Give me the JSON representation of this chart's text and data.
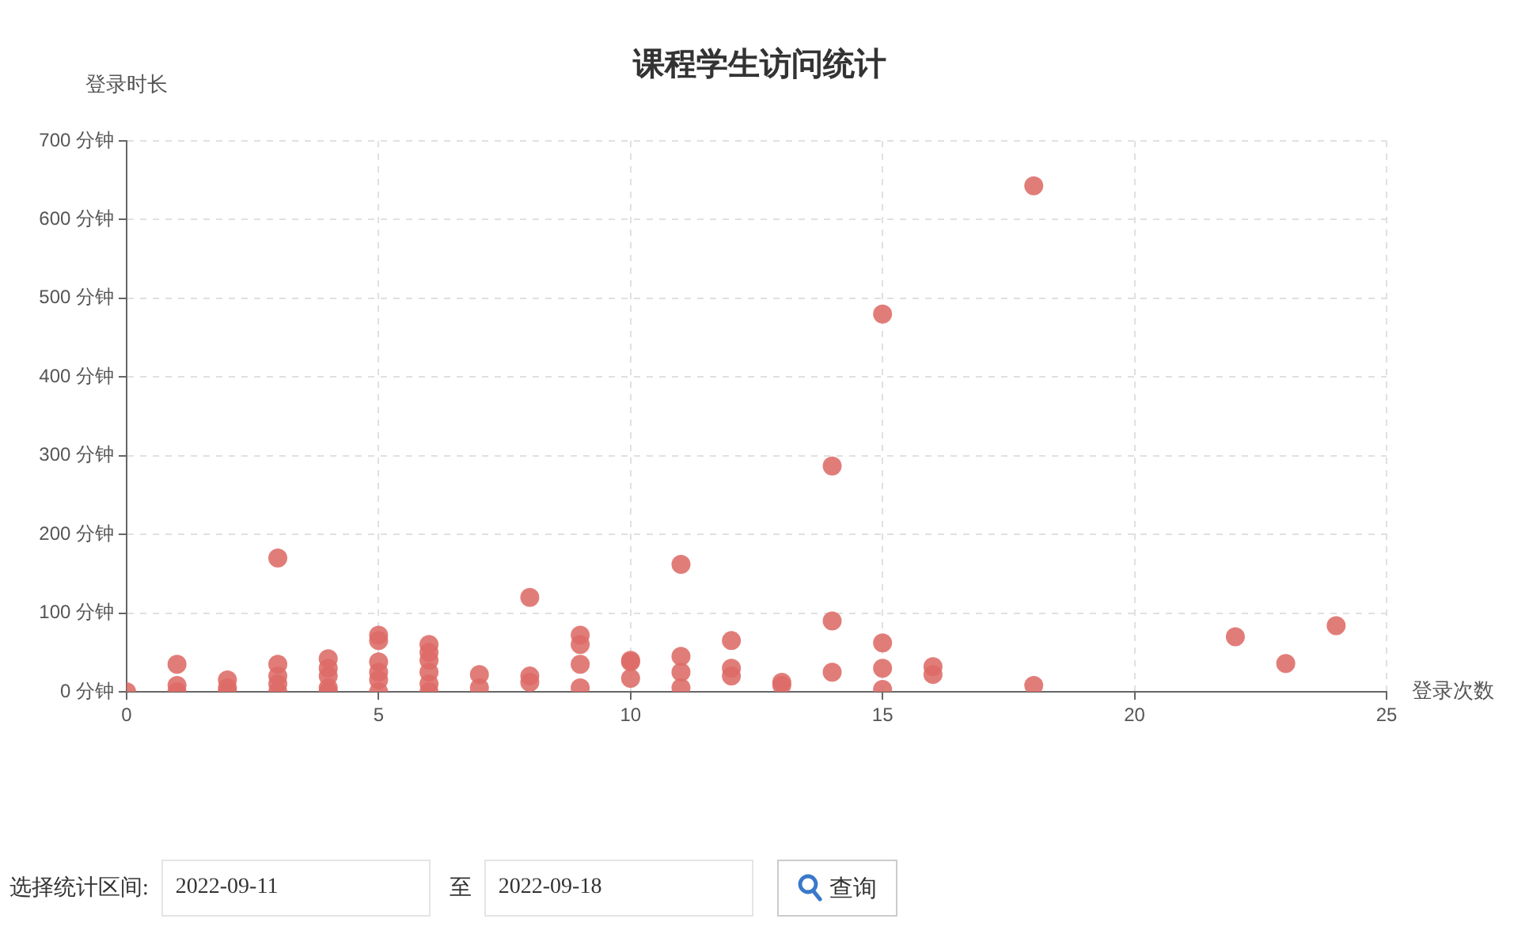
{
  "chart_data": {
    "type": "scatter",
    "title": "课程学生访问统计",
    "xlabel": "登录次数",
    "ylabel": "登录时长",
    "x": [
      0,
      1,
      1,
      1,
      2,
      2,
      2,
      3,
      3,
      3,
      3,
      3,
      4,
      4,
      4,
      4,
      4,
      5,
      5,
      5,
      5,
      5,
      5,
      6,
      6,
      6,
      6,
      6,
      6,
      7,
      7,
      8,
      8,
      8,
      9,
      9,
      9,
      9,
      10,
      10,
      10,
      11,
      11,
      11,
      11,
      12,
      12,
      12,
      13,
      13,
      14,
      14,
      14,
      15,
      15,
      15,
      15,
      16,
      16,
      18,
      18,
      22,
      23,
      24
    ],
    "values": [
      0,
      35,
      8,
      0,
      15,
      5,
      0,
      170,
      35,
      20,
      10,
      0,
      42,
      30,
      20,
      5,
      0,
      72,
      65,
      38,
      25,
      15,
      0,
      60,
      50,
      40,
      25,
      10,
      0,
      22,
      5,
      120,
      20,
      12,
      72,
      60,
      35,
      5,
      40,
      38,
      17,
      162,
      45,
      25,
      5,
      65,
      30,
      20,
      12,
      8,
      287,
      90,
      25,
      480,
      62,
      30,
      3,
      32,
      22,
      643,
      8,
      70,
      36,
      84
    ],
    "color": "#dd6b66",
    "marker": "circle",
    "grid": true,
    "xlim": [
      0,
      25
    ],
    "xticks": [
      0,
      5,
      10,
      15,
      20,
      25
    ],
    "ylim": [
      0,
      700
    ],
    "yticks": [
      {
        "value": 0,
        "label": "0 分钟"
      },
      {
        "value": 100,
        "label": "100 分钟"
      },
      {
        "value": 200,
        "label": "200 分钟"
      },
      {
        "value": 300,
        "label": "300 分钟"
      },
      {
        "value": 400,
        "label": "400 分钟"
      },
      {
        "value": 500,
        "label": "500 分钟"
      },
      {
        "value": 600,
        "label": "600 分钟"
      },
      {
        "value": 700,
        "label": "700 分钟"
      }
    ],
    "annotations": [
      "选择统计区间:",
      "2022-09-11",
      "至",
      "2022-09-18",
      "查询"
    ]
  }
}
